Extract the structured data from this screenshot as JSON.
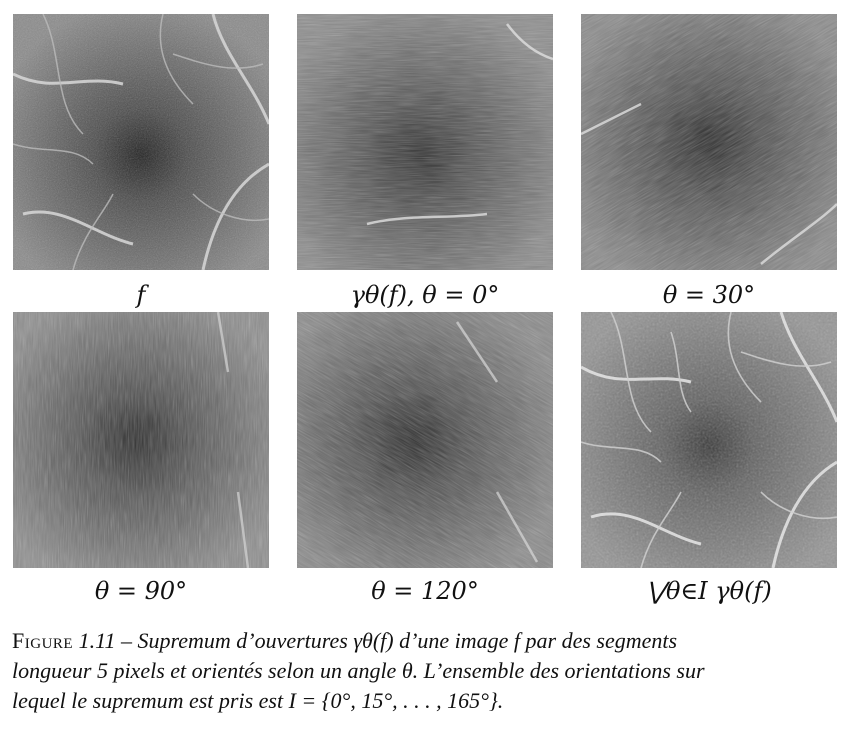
{
  "figure": {
    "panels": [
      {
        "id": "f",
        "caption": "f"
      },
      {
        "id": "theta0",
        "caption": "γθ(f), θ = 0°"
      },
      {
        "id": "theta30",
        "caption": "θ = 30°"
      },
      {
        "id": "theta90",
        "caption": "θ = 90°"
      },
      {
        "id": "theta120",
        "caption": "θ = 120°"
      },
      {
        "id": "supremum",
        "caption": "⋁θ∈I γθ(f)"
      }
    ],
    "caption": {
      "label": "Figure",
      "number": "1.11",
      "line1": " – Supremum d’ouvertures γθ(f) d’une image f par des segments",
      "line2": "longueur 5 pixels et orientés selon un angle θ. L’ensemble des orientations sur",
      "line3": "lequel le supremum est pris est I = {0°, 15°, . . . , 165°}."
    }
  }
}
